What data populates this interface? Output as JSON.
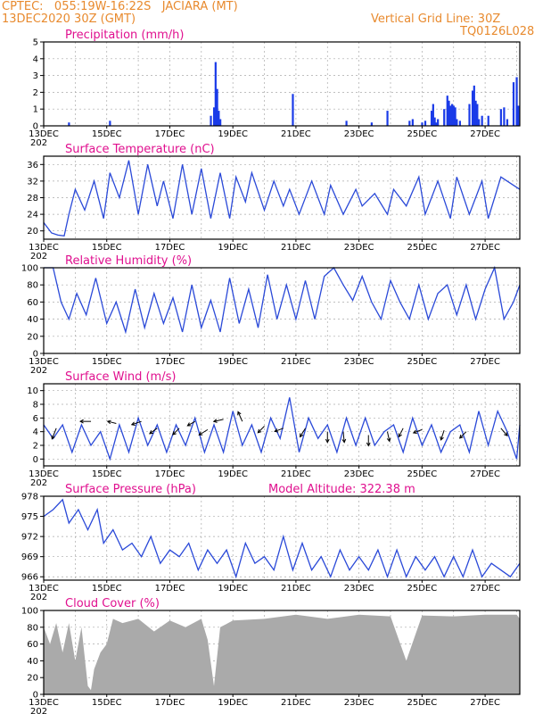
{
  "header": {
    "line1_left": "CPTEC:   055:19W-16:22S   JACIARA (MT)",
    "line2_left": "13DEC2020 30Z (GMT)",
    "line1_right": "Vertical Grid Line: 30Z",
    "line2_right": "TQ0126L028"
  },
  "colors": {
    "series": "#2a49d8",
    "bars": "#1a3be8",
    "cloud": "#aaaaaa",
    "title": "#e0108f",
    "header": "#e88a2e"
  },
  "x_axis_labels": [
    "13DEC",
    "15DEC",
    "17DEC",
    "19DEC",
    "21DEC",
    "23DEC",
    "25DEC",
    "27DEC"
  ],
  "x_axis_sublabel": "202",
  "chart_data": [
    {
      "type": "bar",
      "title": "Precipitation (mm/h)",
      "ylim": [
        0,
        5
      ],
      "yticks": [
        0,
        1,
        2,
        3,
        4,
        5
      ],
      "x_unit": "days since 13DEC 00Z",
      "x": [
        0.8,
        2.1,
        5.3,
        5.4,
        5.45,
        5.5,
        5.55,
        5.6,
        7.9,
        9.6,
        10.4,
        10.9,
        11.6,
        11.7,
        12.0,
        12.1,
        12.3,
        12.35,
        12.4,
        12.45,
        12.5,
        12.7,
        12.8,
        12.85,
        12.9,
        12.95,
        13.0,
        13.05,
        13.1,
        13.2,
        13.5,
        13.6,
        13.65,
        13.7,
        13.75,
        13.8,
        13.9,
        14.1,
        14.5,
        14.6,
        14.7,
        14.9,
        15.0,
        15.05
      ],
      "values": [
        0.2,
        0.3,
        0.6,
        1.1,
        3.8,
        2.2,
        0.9,
        0.4,
        1.9,
        0.3,
        0.2,
        0.9,
        0.3,
        0.4,
        0.2,
        0.3,
        0.9,
        1.3,
        0.5,
        0.2,
        0.4,
        1.0,
        1.8,
        1.5,
        1.2,
        1.3,
        1.2,
        1.1,
        0.4,
        0.3,
        1.3,
        2.1,
        2.4,
        1.5,
        1.3,
        0.4,
        0.6,
        0.6,
        1.0,
        1.1,
        0.4,
        2.6,
        2.9,
        1.2
      ]
    },
    {
      "type": "line",
      "title": "Surface Temperature (nC)",
      "ylim": [
        18,
        38
      ],
      "yticks": [
        20,
        24,
        28,
        32,
        36
      ],
      "x_unit": "days since 13DEC 00Z",
      "x": [
        0,
        0.25,
        0.45,
        0.65,
        0.8,
        1.0,
        1.3,
        1.6,
        1.9,
        2.1,
        2.4,
        2.7,
        3.0,
        3.3,
        3.6,
        3.8,
        4.1,
        4.4,
        4.7,
        5.0,
        5.3,
        5.6,
        5.9,
        6.1,
        6.4,
        6.6,
        7.0,
        7.3,
        7.6,
        7.8,
        8.1,
        8.5,
        8.9,
        9.1,
        9.5,
        9.9,
        10.1,
        10.5,
        10.9,
        11.1,
        11.5,
        11.9,
        12.1,
        12.5,
        12.9,
        13.1,
        13.5,
        13.9,
        14.1,
        14.5,
        14.9,
        15.1
      ],
      "values": [
        22,
        19.5,
        19.0,
        18.8,
        24,
        30,
        25,
        32,
        23,
        34,
        28,
        37,
        24,
        36,
        26,
        32,
        23,
        36,
        24,
        35,
        23,
        34,
        23,
        33,
        27,
        34,
        25,
        32,
        26,
        30,
        24,
        32,
        24,
        31,
        24,
        30,
        26,
        29,
        24,
        30,
        26,
        33,
        24,
        32,
        23,
        33,
        24,
        32,
        23,
        33,
        31,
        30
      ]
    },
    {
      "type": "line",
      "title": "Relative Humidity (%)",
      "ylim": [
        0,
        100
      ],
      "yticks": [
        0,
        20,
        40,
        60,
        80,
        100
      ],
      "x_unit": "days since 13DEC 00Z",
      "x": [
        0,
        0.3,
        0.55,
        0.8,
        1.05,
        1.35,
        1.65,
        2.0,
        2.3,
        2.6,
        2.9,
        3.2,
        3.5,
        3.8,
        4.1,
        4.4,
        4.7,
        5.0,
        5.3,
        5.6,
        5.9,
        6.2,
        6.5,
        6.8,
        7.1,
        7.4,
        7.7,
        8.0,
        8.3,
        8.6,
        8.9,
        9.2,
        9.5,
        9.8,
        10.1,
        10.4,
        10.7,
        11.0,
        11.3,
        11.6,
        11.9,
        12.2,
        12.5,
        12.8,
        13.1,
        13.4,
        13.7,
        14.0,
        14.3,
        14.6,
        14.9,
        15.1
      ],
      "values": [
        100,
        100,
        60,
        40,
        70,
        45,
        88,
        35,
        60,
        25,
        75,
        30,
        70,
        35,
        65,
        25,
        80,
        30,
        62,
        25,
        88,
        35,
        75,
        30,
        92,
        40,
        80,
        40,
        85,
        40,
        90,
        100,
        80,
        62,
        90,
        60,
        40,
        85,
        60,
        40,
        80,
        40,
        70,
        80,
        45,
        80,
        40,
        75,
        100,
        40,
        60,
        80
      ]
    },
    {
      "type": "line",
      "title": "Surface Wind (m/s)",
      "ylim": [
        -1,
        11
      ],
      "yticks": [
        0,
        2,
        4,
        6,
        8,
        10
      ],
      "x_unit": "days since 13DEC 00Z",
      "x": [
        0,
        0.3,
        0.6,
        0.9,
        1.2,
        1.5,
        1.8,
        2.1,
        2.4,
        2.7,
        3.0,
        3.3,
        3.6,
        3.9,
        4.2,
        4.5,
        4.8,
        5.1,
        5.4,
        5.7,
        6.0,
        6.3,
        6.6,
        6.9,
        7.2,
        7.5,
        7.8,
        8.1,
        8.4,
        8.7,
        9.0,
        9.3,
        9.6,
        9.9,
        10.2,
        10.5,
        10.8,
        11.1,
        11.4,
        11.7,
        12.0,
        12.3,
        12.6,
        12.9,
        13.2,
        13.5,
        13.8,
        14.1,
        14.4,
        14.7,
        15.0,
        15.1
      ],
      "values": [
        5,
        3,
        5,
        1,
        5,
        2,
        4,
        0,
        5,
        1,
        6,
        2,
        5,
        1,
        5,
        2,
        6,
        1,
        5,
        1,
        7,
        2,
        5,
        1,
        6,
        3,
        9,
        1,
        6,
        3,
        5,
        1,
        6,
        2,
        6,
        2,
        4,
        5,
        1,
        6,
        2,
        5,
        1,
        4,
        5,
        1,
        7,
        2,
        7,
        4,
        0,
        5
      ]
    },
    {
      "type": "line",
      "title": "Surface Pressure (hPa)",
      "annotation": "Model Altitude: 322.38 m",
      "ylim": [
        965.5,
        978
      ],
      "yticks": [
        966,
        969,
        972,
        975,
        978
      ],
      "x_unit": "days since 13DEC 00Z",
      "x": [
        0,
        0.3,
        0.6,
        0.8,
        1.1,
        1.4,
        1.7,
        1.9,
        2.2,
        2.5,
        2.8,
        3.1,
        3.4,
        3.7,
        4.0,
        4.3,
        4.6,
        4.9,
        5.2,
        5.5,
        5.8,
        6.1,
        6.4,
        6.7,
        7.0,
        7.3,
        7.6,
        7.9,
        8.2,
        8.5,
        8.8,
        9.1,
        9.4,
        9.7,
        10.0,
        10.3,
        10.6,
        10.9,
        11.2,
        11.5,
        11.8,
        12.1,
        12.4,
        12.7,
        13.0,
        13.3,
        13.6,
        13.9,
        14.2,
        14.5,
        14.8,
        15.1
      ],
      "values": [
        975,
        976,
        977.5,
        974,
        976,
        973,
        976,
        971,
        973,
        970,
        971,
        969,
        972,
        968,
        970,
        969,
        971,
        967,
        970,
        968,
        970,
        966,
        971,
        968,
        969,
        967,
        972,
        967,
        971,
        967,
        969,
        966,
        970,
        967,
        969,
        967,
        970,
        966,
        970,
        966,
        969,
        967,
        969,
        966,
        969,
        966,
        970,
        966,
        968,
        967,
        966,
        968
      ]
    },
    {
      "type": "area",
      "title": "Cloud Cover (%)",
      "ylim": [
        0,
        100
      ],
      "yticks": [
        0,
        20,
        40,
        60,
        80,
        100
      ],
      "x_unit": "days since 13DEC 00Z",
      "x": [
        0,
        0.2,
        0.4,
        0.6,
        0.8,
        1.0,
        1.2,
        1.4,
        1.5,
        1.6,
        1.8,
        2.0,
        2.2,
        2.5,
        3.0,
        3.5,
        4.0,
        4.5,
        5.0,
        5.2,
        5.4,
        5.6,
        6.0,
        7.0,
        8.0,
        9.0,
        10.0,
        11.0,
        11.5,
        12.0,
        13.0,
        14.0,
        15.0,
        15.1
      ],
      "values": [
        80,
        60,
        85,
        50,
        85,
        40,
        80,
        10,
        5,
        30,
        50,
        60,
        90,
        85,
        90,
        75,
        88,
        80,
        90,
        65,
        10,
        80,
        88,
        90,
        95,
        90,
        95,
        93,
        40,
        94,
        93,
        95,
        95,
        90
      ]
    }
  ]
}
